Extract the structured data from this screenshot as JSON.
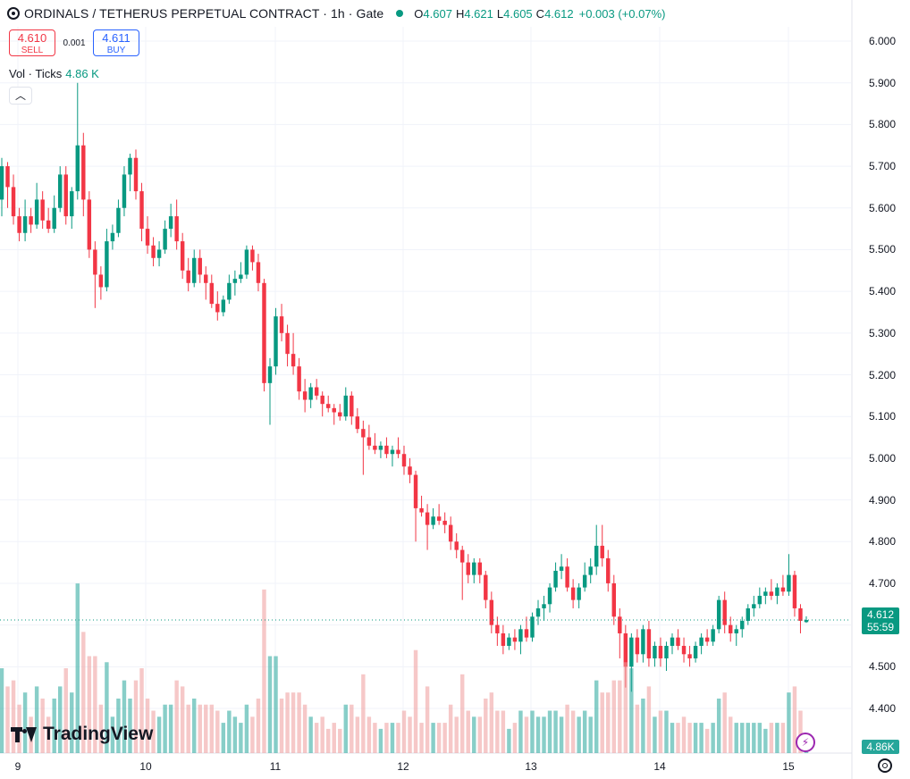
{
  "legend": {
    "title": "ORDINALS / TETHERUS PERPETUAL CONTRACT · 1h · Gate",
    "symbol_icon": "ordinals-logo-icon",
    "status_dot_color": "#089981",
    "o_label": "O",
    "o_value": "4.607",
    "h_label": "H",
    "h_value": "4.621",
    "l_label": "L",
    "l_value": "4.605",
    "c_label": "C",
    "c_value": "4.612",
    "change": "+0.003 (+0.07%)"
  },
  "trade": {
    "sell_price": "4.610",
    "sell_label": "SELL",
    "spread": "0.001",
    "buy_price": "4.611",
    "buy_label": "BUY"
  },
  "volume_legend": {
    "label": "Vol · Ticks",
    "value": "4.86 K"
  },
  "collapse_icon": "chevron-up-icon",
  "price_axis": {
    "ticks": [
      "6.000",
      "5.900",
      "5.800",
      "5.700",
      "5.600",
      "5.500",
      "5.400",
      "5.300",
      "5.200",
      "5.100",
      "5.000",
      "4.900",
      "4.800",
      "4.700",
      "4.600",
      "4.500",
      "4.400"
    ],
    "last_price": "4.612",
    "countdown": "55:59"
  },
  "time_axis": {
    "ticks": [
      "9",
      "10",
      "11",
      "12",
      "13",
      "14",
      "15"
    ]
  },
  "volume_badge": "4.86K",
  "brand": {
    "name": "TradingView"
  },
  "colors": {
    "up": "#089981",
    "down": "#f23645",
    "vol_up": "#26a69a",
    "vol_down": "#ef9a9a"
  },
  "chart_data": {
    "type": "candlestick",
    "interval": "1h",
    "ylim": [
      4.4,
      6.0
    ],
    "series": [
      {
        "name": "price",
        "ohlc": [
          [
            5.62,
            5.72,
            5.58,
            5.7
          ],
          [
            5.7,
            5.71,
            5.6,
            5.65
          ],
          [
            5.65,
            5.68,
            5.56,
            5.58
          ],
          [
            5.58,
            5.6,
            5.52,
            5.54
          ],
          [
            5.54,
            5.62,
            5.52,
            5.58
          ],
          [
            5.58,
            5.6,
            5.54,
            5.56
          ],
          [
            5.56,
            5.66,
            5.55,
            5.62
          ],
          [
            5.62,
            5.64,
            5.55,
            5.57
          ],
          [
            5.57,
            5.6,
            5.54,
            5.55
          ],
          [
            5.55,
            5.63,
            5.54,
            5.6
          ],
          [
            5.6,
            5.7,
            5.59,
            5.68
          ],
          [
            5.68,
            5.7,
            5.56,
            5.58
          ],
          [
            5.58,
            5.65,
            5.55,
            5.64
          ],
          [
            5.64,
            5.9,
            5.62,
            5.75
          ],
          [
            5.75,
            5.78,
            5.58,
            5.62
          ],
          [
            5.62,
            5.64,
            5.48,
            5.5
          ],
          [
            5.5,
            5.52,
            5.36,
            5.44
          ],
          [
            5.44,
            5.46,
            5.38,
            5.41
          ],
          [
            5.41,
            5.55,
            5.4,
            5.52
          ],
          [
            5.52,
            5.56,
            5.5,
            5.54
          ],
          [
            5.54,
            5.62,
            5.53,
            5.6
          ],
          [
            5.6,
            5.7,
            5.58,
            5.68
          ],
          [
            5.68,
            5.73,
            5.64,
            5.72
          ],
          [
            5.72,
            5.74,
            5.62,
            5.64
          ],
          [
            5.64,
            5.66,
            5.52,
            5.55
          ],
          [
            5.55,
            5.58,
            5.49,
            5.51
          ],
          [
            5.51,
            5.53,
            5.46,
            5.48
          ],
          [
            5.48,
            5.52,
            5.46,
            5.5
          ],
          [
            5.5,
            5.57,
            5.49,
            5.55
          ],
          [
            5.55,
            5.61,
            5.53,
            5.58
          ],
          [
            5.58,
            5.62,
            5.5,
            5.52
          ],
          [
            5.52,
            5.54,
            5.43,
            5.45
          ],
          [
            5.45,
            5.48,
            5.4,
            5.42
          ],
          [
            5.42,
            5.5,
            5.41,
            5.48
          ],
          [
            5.48,
            5.5,
            5.42,
            5.44
          ],
          [
            5.44,
            5.46,
            5.38,
            5.42
          ],
          [
            5.42,
            5.44,
            5.36,
            5.37
          ],
          [
            5.37,
            5.4,
            5.33,
            5.35
          ],
          [
            5.35,
            5.39,
            5.34,
            5.38
          ],
          [
            5.38,
            5.44,
            5.37,
            5.42
          ],
          [
            5.42,
            5.45,
            5.39,
            5.43
          ],
          [
            5.43,
            5.47,
            5.42,
            5.44
          ],
          [
            5.44,
            5.51,
            5.43,
            5.5
          ],
          [
            5.5,
            5.51,
            5.45,
            5.47
          ],
          [
            5.47,
            5.49,
            5.4,
            5.42
          ],
          [
            5.42,
            5.43,
            5.16,
            5.18
          ],
          [
            5.18,
            5.24,
            5.08,
            5.22
          ],
          [
            5.22,
            5.36,
            5.2,
            5.34
          ],
          [
            5.34,
            5.37,
            5.28,
            5.3
          ],
          [
            5.3,
            5.32,
            5.22,
            5.25
          ],
          [
            5.25,
            5.3,
            5.2,
            5.22
          ],
          [
            5.22,
            5.24,
            5.14,
            5.16
          ],
          [
            5.16,
            5.19,
            5.11,
            5.14
          ],
          [
            5.14,
            5.18,
            5.12,
            5.17
          ],
          [
            5.17,
            5.19,
            5.14,
            5.15
          ],
          [
            5.15,
            5.16,
            5.1,
            5.13
          ],
          [
            5.13,
            5.15,
            5.11,
            5.12
          ],
          [
            5.12,
            5.13,
            5.08,
            5.11
          ],
          [
            5.11,
            5.13,
            5.09,
            5.1
          ],
          [
            5.1,
            5.17,
            5.09,
            5.15
          ],
          [
            5.15,
            5.16,
            5.08,
            5.1
          ],
          [
            5.1,
            5.12,
            5.06,
            5.07
          ],
          [
            5.07,
            5.09,
            4.96,
            5.05
          ],
          [
            5.05,
            5.08,
            5.02,
            5.03
          ],
          [
            5.03,
            5.06,
            5.01,
            5.02
          ],
          [
            5.02,
            5.04,
            5.0,
            5.03
          ],
          [
            5.03,
            5.05,
            5.0,
            5.01
          ],
          [
            5.01,
            5.03,
            4.98,
            5.02
          ],
          [
            5.02,
            5.05,
            5.0,
            5.01
          ],
          [
            5.01,
            5.03,
            4.96,
            4.98
          ],
          [
            4.98,
            5.0,
            4.94,
            4.96
          ],
          [
            4.96,
            4.97,
            4.8,
            4.88
          ],
          [
            4.88,
            4.91,
            4.86,
            4.87
          ],
          [
            4.87,
            4.89,
            4.78,
            4.84
          ],
          [
            4.84,
            4.88,
            4.83,
            4.86
          ],
          [
            4.86,
            4.89,
            4.84,
            4.85
          ],
          [
            4.85,
            4.87,
            4.82,
            4.84
          ],
          [
            4.84,
            4.86,
            4.78,
            4.8
          ],
          [
            4.8,
            4.82,
            4.76,
            4.78
          ],
          [
            4.78,
            4.79,
            4.66,
            4.75
          ],
          [
            4.75,
            4.77,
            4.7,
            4.72
          ],
          [
            4.72,
            4.76,
            4.7,
            4.75
          ],
          [
            4.75,
            4.76,
            4.7,
            4.72
          ],
          [
            4.72,
            4.73,
            4.64,
            4.66
          ],
          [
            4.66,
            4.68,
            4.58,
            4.6
          ],
          [
            4.6,
            4.62,
            4.55,
            4.58
          ],
          [
            4.58,
            4.6,
            4.53,
            4.55
          ],
          [
            4.55,
            4.58,
            4.54,
            4.57
          ],
          [
            4.57,
            4.59,
            4.54,
            4.56
          ],
          [
            4.56,
            4.6,
            4.53,
            4.59
          ],
          [
            4.59,
            4.62,
            4.56,
            4.57
          ],
          [
            4.57,
            4.63,
            4.56,
            4.62
          ],
          [
            4.62,
            4.66,
            4.6,
            4.64
          ],
          [
            4.64,
            4.67,
            4.61,
            4.65
          ],
          [
            4.65,
            4.7,
            4.63,
            4.69
          ],
          [
            4.69,
            4.75,
            4.68,
            4.73
          ],
          [
            4.73,
            4.77,
            4.71,
            4.74
          ],
          [
            4.74,
            4.76,
            4.68,
            4.69
          ],
          [
            4.69,
            4.71,
            4.64,
            4.66
          ],
          [
            4.66,
            4.7,
            4.64,
            4.69
          ],
          [
            4.69,
            4.75,
            4.68,
            4.72
          ],
          [
            4.72,
            4.76,
            4.7,
            4.74
          ],
          [
            4.74,
            4.84,
            4.72,
            4.79
          ],
          [
            4.79,
            4.84,
            4.74,
            4.76
          ],
          [
            4.76,
            4.78,
            4.68,
            4.7
          ],
          [
            4.7,
            4.72,
            4.6,
            4.62
          ],
          [
            4.62,
            4.64,
            4.52,
            4.58
          ],
          [
            4.58,
            4.6,
            4.45,
            4.5
          ],
          [
            4.5,
            4.58,
            4.44,
            4.57
          ],
          [
            4.57,
            4.59,
            4.51,
            4.53
          ],
          [
            4.53,
            4.6,
            4.51,
            4.59
          ],
          [
            4.59,
            4.61,
            4.5,
            4.52
          ],
          [
            4.52,
            4.56,
            4.5,
            4.55
          ],
          [
            4.55,
            4.57,
            4.5,
            4.52
          ],
          [
            4.52,
            4.56,
            4.49,
            4.55
          ],
          [
            4.55,
            4.58,
            4.53,
            4.57
          ],
          [
            4.57,
            4.59,
            4.54,
            4.55
          ],
          [
            4.55,
            4.57,
            4.51,
            4.53
          ],
          [
            4.53,
            4.55,
            4.5,
            4.52
          ],
          [
            4.52,
            4.56,
            4.51,
            4.55
          ],
          [
            4.55,
            4.58,
            4.53,
            4.57
          ],
          [
            4.57,
            4.59,
            4.55,
            4.56
          ],
          [
            4.56,
            4.6,
            4.55,
            4.59
          ],
          [
            4.59,
            4.67,
            4.58,
            4.66
          ],
          [
            4.66,
            4.68,
            4.58,
            4.6
          ],
          [
            4.6,
            4.62,
            4.56,
            4.58
          ],
          [
            4.58,
            4.6,
            4.55,
            4.59
          ],
          [
            4.59,
            4.62,
            4.57,
            4.61
          ],
          [
            4.61,
            4.65,
            4.6,
            4.64
          ],
          [
            4.64,
            4.67,
            4.62,
            4.65
          ],
          [
            4.65,
            4.69,
            4.64,
            4.67
          ],
          [
            4.67,
            4.69,
            4.65,
            4.68
          ],
          [
            4.68,
            4.71,
            4.66,
            4.67
          ],
          [
            4.67,
            4.7,
            4.65,
            4.69
          ],
          [
            4.69,
            4.72,
            4.67,
            4.68
          ],
          [
            4.68,
            4.77,
            4.67,
            4.72
          ],
          [
            4.72,
            4.73,
            4.62,
            4.64
          ],
          [
            4.64,
            4.65,
            4.58,
            4.61
          ],
          [
            4.607,
            4.621,
            4.605,
            4.612
          ]
        ]
      }
    ]
  }
}
